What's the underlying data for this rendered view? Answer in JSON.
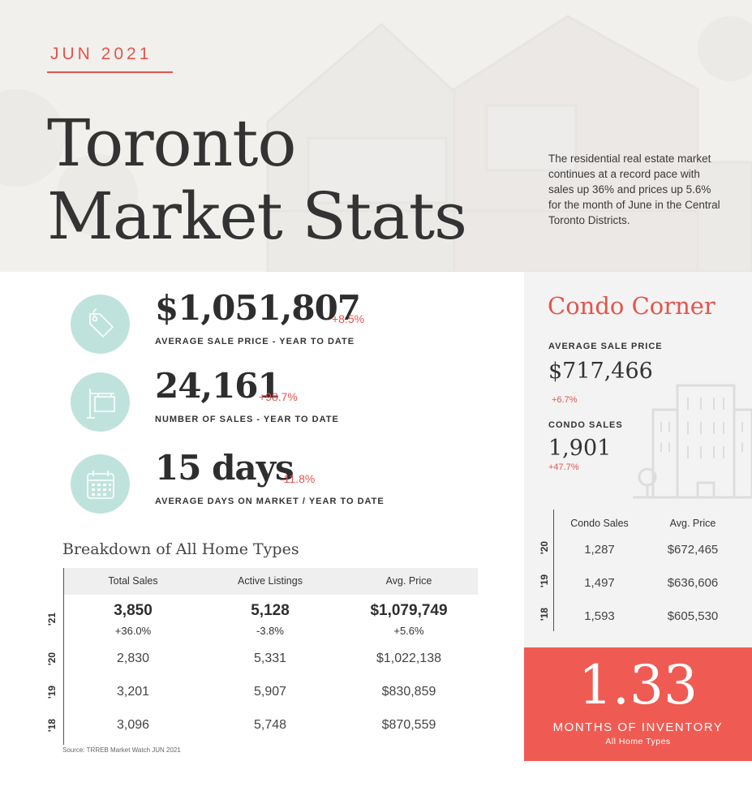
{
  "header": {
    "date": "JUN 2021",
    "title_line1": "Toronto",
    "title_line2": "Market Stats",
    "description": "The residential real estate market continues at a record pace with sales up 36% and prices up 5.6% for the month of June in the Central Toronto Districts."
  },
  "kpis": [
    {
      "icon": "price-tag-icon",
      "value": "$1,051,807",
      "change": "+8.5%",
      "label": "AVERAGE SALE PRICE - YEAR TO DATE"
    },
    {
      "icon": "sale-sign-icon",
      "value": "24,161",
      "change": "+98.7%",
      "label": "NUMBER OF SALES - YEAR TO DATE"
    },
    {
      "icon": "calendar-icon",
      "value": "15 days",
      "change": "-11.8%",
      "label": "AVERAGE DAYS ON MARKET / YEAR TO DATE"
    }
  ],
  "breakdown": {
    "title": "Breakdown of All Home Types",
    "headers": [
      "Total Sales",
      "Active Listings",
      "Avg. Price"
    ],
    "rows": [
      {
        "year": "'21",
        "total_sales": "3,850",
        "total_sales_change": "+36.0%",
        "active_listings": "5,128",
        "active_listings_change": "-3.8%",
        "avg_price": "$1,079,749",
        "avg_price_change": "+5.6%"
      },
      {
        "year": "'20",
        "total_sales": "2,830",
        "active_listings": "5,331",
        "avg_price": "$1,022,138"
      },
      {
        "year": "'19",
        "total_sales": "3,201",
        "active_listings": "5,907",
        "avg_price": "$830,859"
      },
      {
        "year": "'18",
        "total_sales": "3,096",
        "active_listings": "5,748",
        "avg_price": "$870,559"
      }
    ],
    "source": "Source: TRREB Market Watch JUN 2021"
  },
  "condo": {
    "title": "Condo Corner",
    "avg_price_label": "AVERAGE SALE PRICE",
    "avg_price_value": "$717,466",
    "avg_price_change": "+6.7%",
    "sales_label": "CONDO SALES",
    "sales_value": "1,901",
    "sales_change": "+47.7%",
    "table_headers": [
      "Condo Sales",
      "Avg. Price"
    ],
    "rows": [
      {
        "year": "'20",
        "sales": "1,287",
        "price": "$672,465"
      },
      {
        "year": "'19",
        "sales": "1,497",
        "price": "$636,606"
      },
      {
        "year": "'18",
        "sales": "1,593",
        "price": "$605,530"
      }
    ]
  },
  "inventory": {
    "value": "1.33",
    "label": "MONTHS OF INVENTORY",
    "sub": "All Home Types"
  },
  "colors": {
    "accent": "#e3554c",
    "mint": "#bfe3dc",
    "panel": "#f3f3f3",
    "inventory_bg": "#ef5b53"
  }
}
